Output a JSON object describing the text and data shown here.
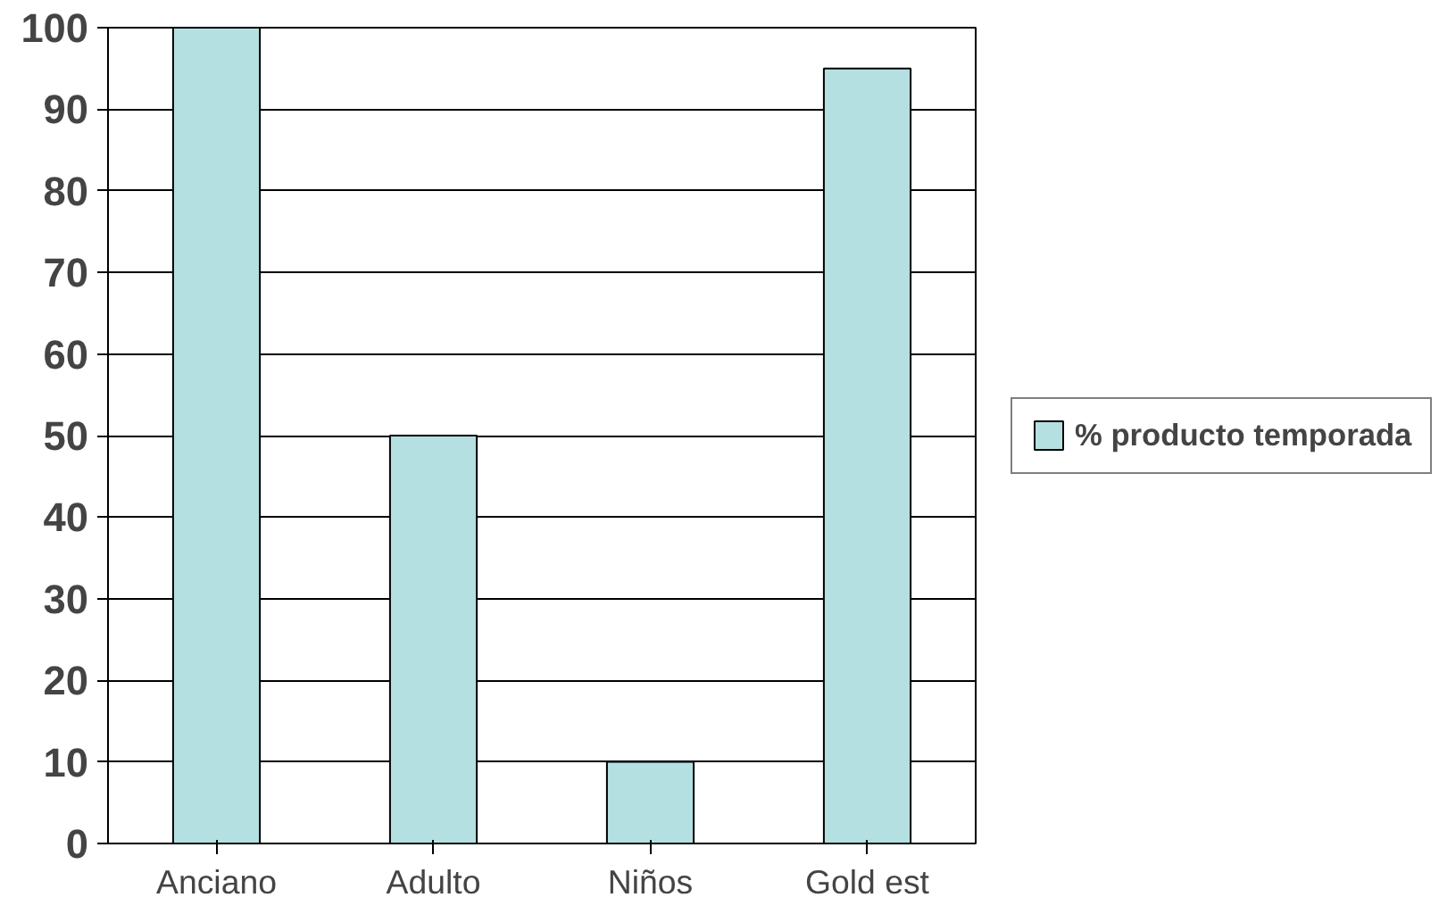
{
  "chart_data": {
    "type": "bar",
    "categories": [
      "Anciano",
      "Adulto",
      "Niños",
      "Gold est"
    ],
    "series": [
      {
        "name": "% producto temporada",
        "color": "#b4e0e2",
        "values": [
          100,
          50,
          10,
          95
        ]
      }
    ],
    "ylim": [
      0,
      100
    ],
    "yticks": [
      0,
      10,
      20,
      30,
      40,
      50,
      60,
      70,
      80,
      90,
      100
    ],
    "grid": "y",
    "legend": "right"
  }
}
